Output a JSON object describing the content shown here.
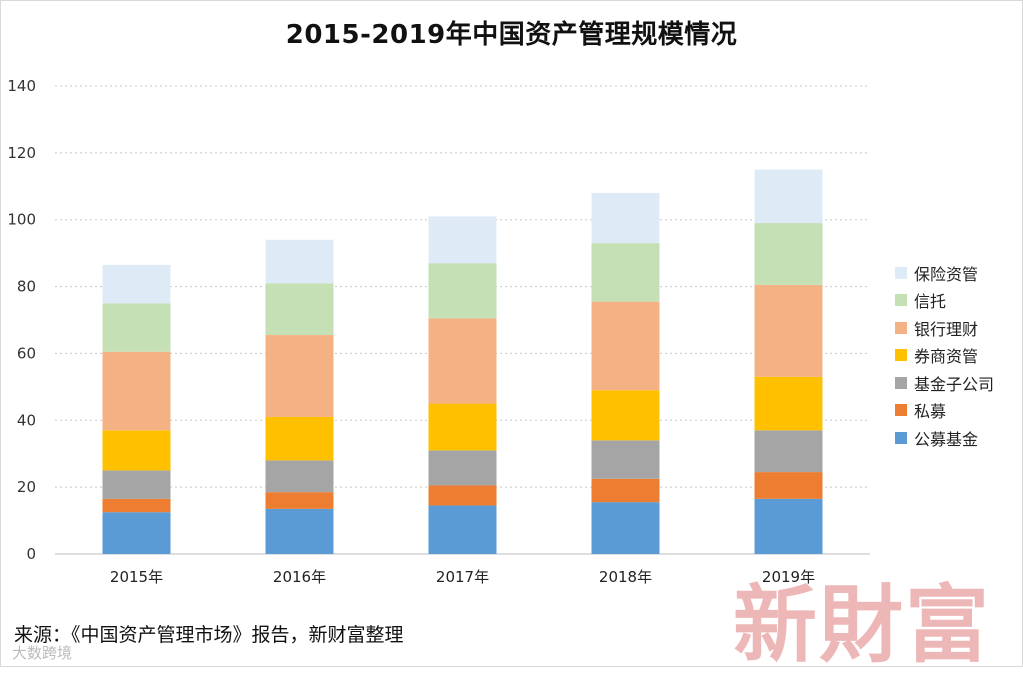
{
  "chart_data": {
    "type": "bar",
    "stacked": true,
    "title": "2015-2019年中国资产管理规模情况",
    "categories": [
      "2015年",
      "2016年",
      "2017年",
      "2018年",
      "2019年"
    ],
    "ylim": [
      0,
      140
    ],
    "yticks": [
      0,
      20,
      40,
      60,
      80,
      100,
      120,
      140
    ],
    "grid": true,
    "legend_position": "right",
    "series": [
      {
        "name": "公募基金",
        "color": "#5b9bd5",
        "values": [
          12.5,
          13.5,
          14.5,
          15.5,
          16.5
        ]
      },
      {
        "name": "私募",
        "color": "#ed7d31",
        "values": [
          4.0,
          5.0,
          6.0,
          7.0,
          8.0
        ]
      },
      {
        "name": "基金子公司",
        "color": "#a5a5a5",
        "values": [
          8.5,
          9.5,
          10.5,
          11.5,
          12.5
        ]
      },
      {
        "name": "券商资管",
        "color": "#ffc000",
        "values": [
          12.0,
          13.0,
          14.0,
          15.0,
          16.0
        ]
      },
      {
        "name": "银行理财",
        "color": "#f4b183",
        "values": [
          23.5,
          24.5,
          25.5,
          26.5,
          27.5
        ]
      },
      {
        "name": "信托",
        "color": "#c5e0b4",
        "values": [
          14.5,
          15.5,
          16.5,
          17.5,
          18.5
        ]
      },
      {
        "name": "保险资管",
        "color": "#deebf7",
        "values": [
          11.5,
          13.0,
          14.0,
          15.0,
          16.0
        ]
      }
    ]
  },
  "source_text": "来源：《中国资产管理市场》报告，新财富整理",
  "watermark_text": "新財富",
  "corner_mark_text": "大数跨境"
}
